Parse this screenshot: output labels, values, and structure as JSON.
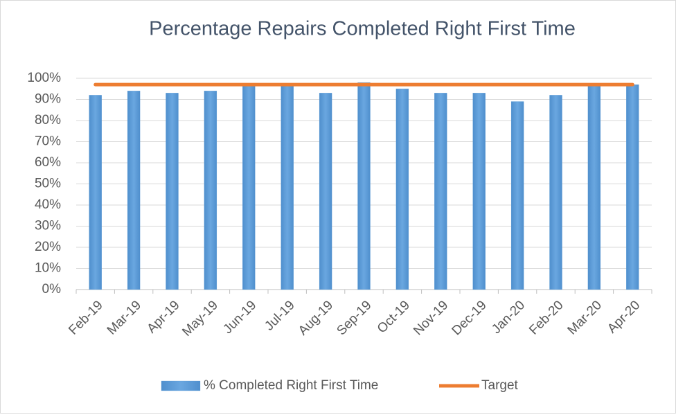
{
  "chart_data": {
    "type": "bar",
    "title": "Percentage Repairs Completed Right First Time",
    "categories": [
      "Feb-19",
      "Mar-19",
      "Apr-19",
      "May-19",
      "Jun-19",
      "Jul-19",
      "Aug-19",
      "Sep-19",
      "Oct-19",
      "Nov-19",
      "Dec-19",
      "Jan-20",
      "Feb-20",
      "Mar-20",
      "Apr-20"
    ],
    "series": [
      {
        "name": "% Completed Right First Time",
        "type": "bar",
        "color": "#5b9bd5",
        "values": [
          92,
          94,
          93,
          94,
          97,
          97,
          93,
          98,
          95,
          93,
          93,
          89,
          92,
          97,
          97
        ]
      },
      {
        "name": "Target",
        "type": "line",
        "color": "#ed7d31",
        "values": [
          97,
          97,
          97,
          97,
          97,
          97,
          97,
          97,
          97,
          97,
          97,
          97,
          97,
          97,
          97
        ]
      }
    ],
    "ylim": [
      0,
      100
    ],
    "yticks": [
      {
        "value": 0,
        "label": "0%"
      },
      {
        "value": 10,
        "label": "10%"
      },
      {
        "value": 20,
        "label": "20%"
      },
      {
        "value": 30,
        "label": "30%"
      },
      {
        "value": 40,
        "label": "40%"
      },
      {
        "value": 50,
        "label": "50%"
      },
      {
        "value": 60,
        "label": "60%"
      },
      {
        "value": 70,
        "label": "70%"
      },
      {
        "value": 80,
        "label": "80%"
      },
      {
        "value": 90,
        "label": "90%"
      },
      {
        "value": 100,
        "label": "100%"
      }
    ],
    "grid": true,
    "legend": "bottom"
  }
}
